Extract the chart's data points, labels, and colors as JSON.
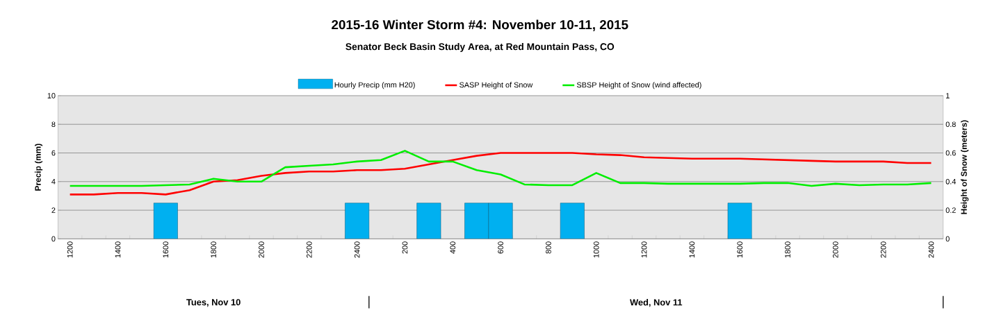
{
  "chart_data": {
    "type": "bar",
    "title": "2015-16 Winter Storm #4:  November 10-11, 2015",
    "subtitle": "Senator Beck Basin Study Area, at Red Mountain Pass, CO",
    "ylabel": "Precip (mm)",
    "y2label": "Height of Snow (meters)",
    "categories": [
      "1200",
      null,
      "1400",
      null,
      "1600",
      null,
      "1800",
      null,
      "2000",
      null,
      "2200",
      null,
      "2400",
      null,
      "200",
      null,
      "400",
      null,
      "600",
      null,
      "800",
      null,
      "1000",
      null,
      "1200",
      null,
      "1400",
      null,
      "1600",
      null,
      "1800",
      null,
      "2000",
      null,
      "2200",
      null,
      "2400"
    ],
    "series": [
      {
        "name": "Hourly Precip (mm H20)",
        "color": "#00b0f0",
        "values": [
          null,
          null,
          null,
          null,
          2.5,
          null,
          null,
          null,
          null,
          null,
          null,
          null,
          2.5,
          null,
          null,
          2.5,
          null,
          2.5,
          2.5,
          null,
          null,
          2.5,
          null,
          null,
          null,
          null,
          null,
          null,
          2.5,
          null,
          null,
          null,
          null,
          null,
          null,
          null,
          null
        ]
      },
      {
        "name": "SASP Height of Snow",
        "type": "line",
        "axis": "y2",
        "color": "#ff0000",
        "values": [
          0.31,
          0.31,
          0.32,
          0.32,
          0.31,
          0.34,
          0.4,
          0.41,
          0.44,
          0.46,
          0.47,
          0.47,
          0.48,
          0.48,
          0.49,
          0.52,
          0.55,
          0.58,
          0.6,
          0.6,
          0.6,
          0.6,
          0.59,
          0.585,
          0.57,
          0.565,
          0.56,
          0.56,
          0.56,
          0.555,
          0.55,
          0.545,
          0.54,
          0.54,
          0.54,
          0.53,
          0.53
        ]
      },
      {
        "name": "SBSP Height of Snow (wind affected)",
        "type": "line",
        "axis": "y2",
        "color": "#00ee00",
        "values": [
          0.37,
          0.37,
          0.37,
          0.37,
          0.375,
          0.38,
          0.42,
          0.4,
          0.4,
          0.5,
          0.51,
          0.52,
          0.54,
          0.55,
          0.615,
          0.54,
          0.54,
          0.48,
          0.45,
          0.38,
          0.375,
          0.375,
          0.46,
          0.39,
          0.39,
          0.385,
          0.385,
          0.385,
          0.385,
          0.39,
          0.39,
          0.37,
          0.385,
          0.375,
          0.38,
          0.38,
          0.39
        ]
      }
    ],
    "ylim": [
      0,
      10
    ],
    "yticks": [
      0,
      2,
      4,
      6,
      8,
      10
    ],
    "y2lim": [
      0,
      1
    ],
    "y2ticks": [
      0,
      0.2,
      0.4,
      0.6,
      0.8,
      1
    ],
    "grid": "y",
    "legend": "top",
    "annotations": [
      "Tues, Nov 10",
      "Wed, Nov 11"
    ]
  }
}
